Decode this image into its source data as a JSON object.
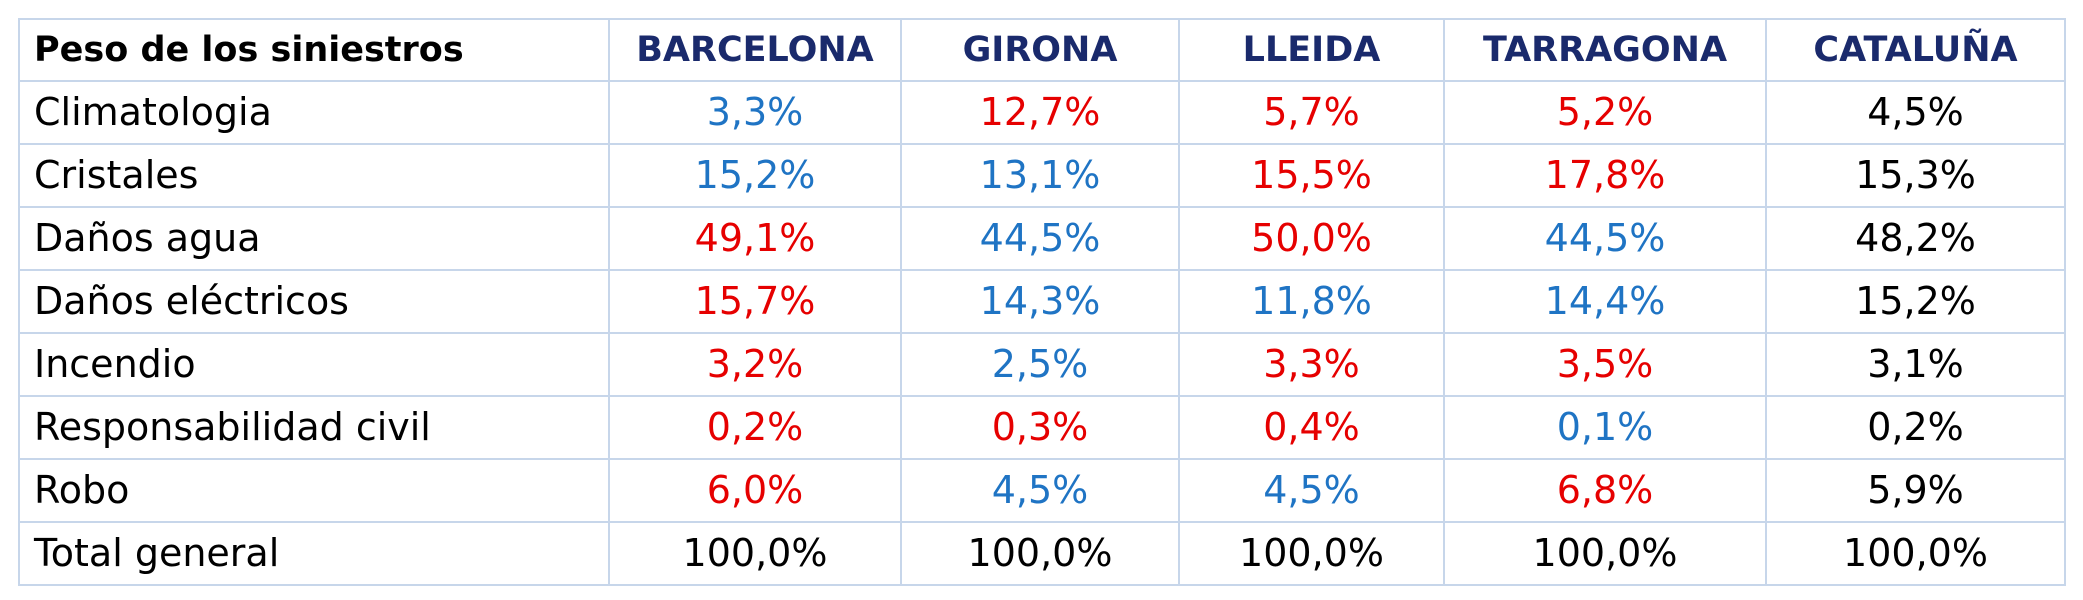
{
  "header": {
    "label": "Peso de los siniestros",
    "columns": [
      "BARCELONA",
      "GIRONA",
      "LLEIDA",
      "TARRAGONA",
      "CATALUÑA"
    ]
  },
  "colors": {
    "above_total": "#e60000",
    "below_total": "#1f74c4",
    "total": "#000000",
    "header_text": "#1a2a6c",
    "border": "#c7d6ea"
  },
  "rows": [
    {
      "label": "Climatologia",
      "values": [
        "3,3%",
        "12,7%",
        "5,7%",
        "5,2%",
        "4,5%"
      ],
      "tones": [
        "down",
        "up",
        "up",
        "up",
        "neutral"
      ]
    },
    {
      "label": "Cristales",
      "values": [
        "15,2%",
        "13,1%",
        "15,5%",
        "17,8%",
        "15,3%"
      ],
      "tones": [
        "down",
        "down",
        "up",
        "up",
        "neutral"
      ]
    },
    {
      "label": "Daños agua",
      "values": [
        "49,1%",
        "44,5%",
        "50,0%",
        "44,5%",
        "48,2%"
      ],
      "tones": [
        "up",
        "down",
        "up",
        "down",
        "neutral"
      ]
    },
    {
      "label": "Daños eléctricos",
      "values": [
        "15,7%",
        "14,3%",
        "11,8%",
        "14,4%",
        "15,2%"
      ],
      "tones": [
        "up",
        "down",
        "down",
        "down",
        "neutral"
      ]
    },
    {
      "label": "Incendio",
      "values": [
        "3,2%",
        "2,5%",
        "3,3%",
        "3,5%",
        "3,1%"
      ],
      "tones": [
        "up",
        "down",
        "up",
        "up",
        "neutral"
      ]
    },
    {
      "label": "Responsabilidad civil",
      "values": [
        "0,2%",
        "0,3%",
        "0,4%",
        "0,1%",
        "0,2%"
      ],
      "tones": [
        "up",
        "up",
        "up",
        "down",
        "neutral"
      ]
    },
    {
      "label": "Robo",
      "values": [
        "6,0%",
        "4,5%",
        "4,5%",
        "6,8%",
        "5,9%"
      ],
      "tones": [
        "up",
        "down",
        "down",
        "up",
        "neutral"
      ]
    },
    {
      "label": "Total general",
      "values": [
        "100,0%",
        "100,0%",
        "100,0%",
        "100,0%",
        "100,0%"
      ],
      "tones": [
        "neutral",
        "neutral",
        "neutral",
        "neutral",
        "neutral"
      ]
    }
  ]
}
